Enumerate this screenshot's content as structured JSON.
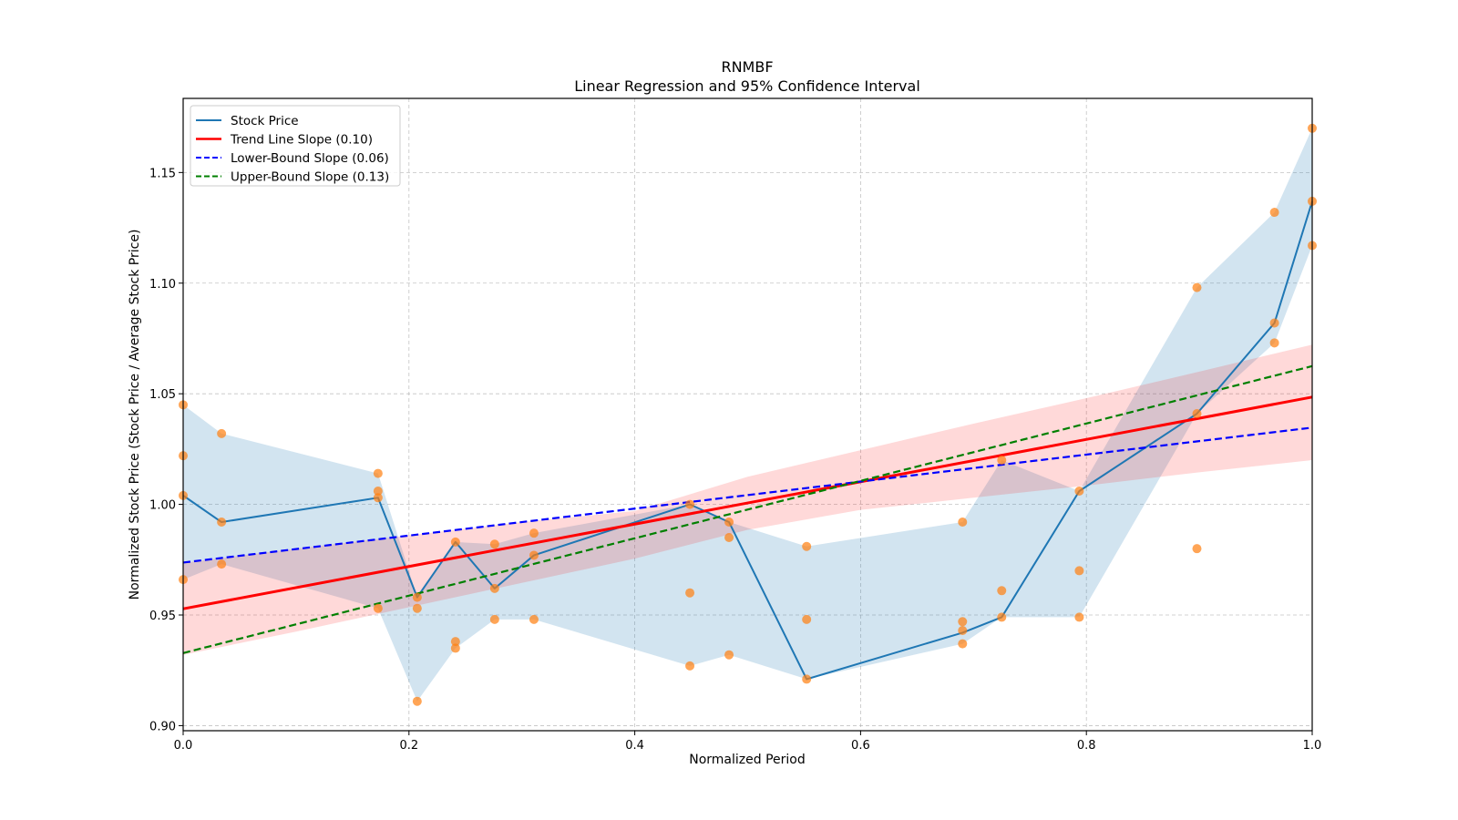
{
  "chart_data": {
    "type": "line",
    "title": "RNMBF",
    "subtitle": "Linear Regression and 95% Confidence Interval",
    "xlabel": "Normalized Period",
    "ylabel": "Normalized Stock Price (Stock Price / Average Stock Price)",
    "xlim": [
      0.0,
      1.0
    ],
    "ylim": [
      0.8977,
      1.1835
    ],
    "grid": true,
    "legend_position": "top-left",
    "xticks": [
      {
        "value": 0.0,
        "label": "0.0"
      },
      {
        "value": 0.2,
        "label": "0.2"
      },
      {
        "value": 0.4,
        "label": "0.4"
      },
      {
        "value": 0.6,
        "label": "0.6"
      },
      {
        "value": 0.8,
        "label": "0.8"
      },
      {
        "value": 1.0,
        "label": "1.0"
      }
    ],
    "yticks": [
      {
        "value": 0.9,
        "label": "0.90"
      },
      {
        "value": 0.95,
        "label": "0.95"
      },
      {
        "value": 1.0,
        "label": "1.00"
      },
      {
        "value": 1.05,
        "label": "1.05"
      },
      {
        "value": 1.1,
        "label": "1.10"
      },
      {
        "value": 1.15,
        "label": "1.15"
      }
    ],
    "colors": {
      "stock": "#1f77b4",
      "stock_band": "#1f77b4",
      "points": "#ff7f0e",
      "trend": "#ff0000",
      "trend_band": "#ff0000",
      "lower": "#0000ff",
      "upper": "#008000",
      "grid": "#b0b0b0"
    },
    "legend": [
      {
        "label": "Stock Price",
        "key": "stock",
        "style": "solid"
      },
      {
        "label": "Trend Line Slope (0.10)",
        "key": "trend",
        "style": "solid"
      },
      {
        "label": "Lower-Bound Slope (0.06)",
        "key": "lower",
        "style": "dashed"
      },
      {
        "label": "Upper-Bound Slope (0.13)",
        "key": "upper",
        "style": "dashed"
      }
    ],
    "stock_price": {
      "x": [
        0.0,
        0.034,
        0.1726,
        0.2073,
        0.2412,
        0.2759,
        0.3107,
        0.4488,
        0.4835,
        0.5522,
        0.6903,
        0.725,
        0.7937,
        0.8979,
        0.9666,
        1.0
      ],
      "y": [
        1.004,
        0.992,
        1.003,
        0.958,
        0.983,
        0.962,
        0.977,
        1.0,
        0.992,
        0.921,
        0.942,
        0.949,
        1.006,
        1.041,
        1.082,
        1.137
      ],
      "band_upper": [
        1.045,
        1.032,
        1.014,
        0.958,
        0.983,
        0.982,
        0.987,
        1.0,
        0.992,
        0.981,
        0.992,
        1.02,
        1.006,
        1.098,
        1.132,
        1.17
      ],
      "band_lower": [
        0.966,
        0.973,
        0.953,
        0.911,
        0.935,
        0.948,
        0.948,
        0.927,
        0.932,
        0.921,
        0.937,
        0.949,
        0.949,
        1.041,
        1.073,
        1.117
      ]
    },
    "scatter": {
      "x": [
        0.0,
        0.0,
        0.0,
        0.0,
        0.034,
        0.034,
        0.034,
        0.1726,
        0.1726,
        0.1726,
        0.1726,
        0.2073,
        0.2073,
        0.2073,
        0.2412,
        0.2412,
        0.2412,
        0.2759,
        0.2759,
        0.2759,
        0.3107,
        0.3107,
        0.3107,
        0.4488,
        0.4488,
        0.4488,
        0.4835,
        0.4835,
        0.4835,
        0.5522,
        0.5522,
        0.5522,
        0.6903,
        0.6903,
        0.6903,
        0.6903,
        0.725,
        0.725,
        0.725,
        0.7937,
        0.7937,
        0.7937,
        0.8979,
        0.8979,
        0.8979,
        0.9666,
        0.9666,
        0.9666,
        1.0,
        1.0,
        1.0
      ],
      "y": [
        1.045,
        1.022,
        1.004,
        0.966,
        1.032,
        0.992,
        0.973,
        1.014,
        1.006,
        1.003,
        0.953,
        0.958,
        0.953,
        0.911,
        0.983,
        0.938,
        0.935,
        0.982,
        0.962,
        0.948,
        0.987,
        0.977,
        0.948,
        1.0,
        0.96,
        0.927,
        0.992,
        0.985,
        0.932,
        0.981,
        0.948,
        0.921,
        0.992,
        0.947,
        0.943,
        0.937,
        1.02,
        0.961,
        0.949,
        1.006,
        0.97,
        0.949,
        1.098,
        1.041,
        0.98,
        1.132,
        1.082,
        1.073,
        1.17,
        1.137,
        1.117
      ]
    },
    "trend_line": {
      "x": [
        0.0,
        1.0
      ],
      "y": [
        0.9528,
        1.0485
      ],
      "slope": 0.1
    },
    "trend_band": {
      "x": [
        0.0,
        0.1,
        0.2,
        0.3,
        0.4,
        0.5,
        0.6,
        0.7,
        0.8,
        0.9,
        1.0
      ],
      "upper": [
        0.9735,
        0.98,
        0.986,
        0.992,
        0.997,
        1.0125,
        1.0245,
        1.0365,
        1.048,
        1.06,
        1.0722
      ],
      "lower": [
        0.932,
        0.9425,
        0.9535,
        0.9645,
        0.9755,
        0.9885,
        0.9975,
        1.003,
        1.0085,
        1.0145,
        1.02
      ]
    },
    "lower_bound_line": {
      "x": [
        0.0,
        1.0
      ],
      "y": [
        0.9737,
        1.0347
      ],
      "slope": 0.06
    },
    "upper_bound_line": {
      "x": [
        0.0,
        1.0
      ],
      "y": [
        0.9328,
        1.0625
      ],
      "slope": 0.13
    }
  }
}
